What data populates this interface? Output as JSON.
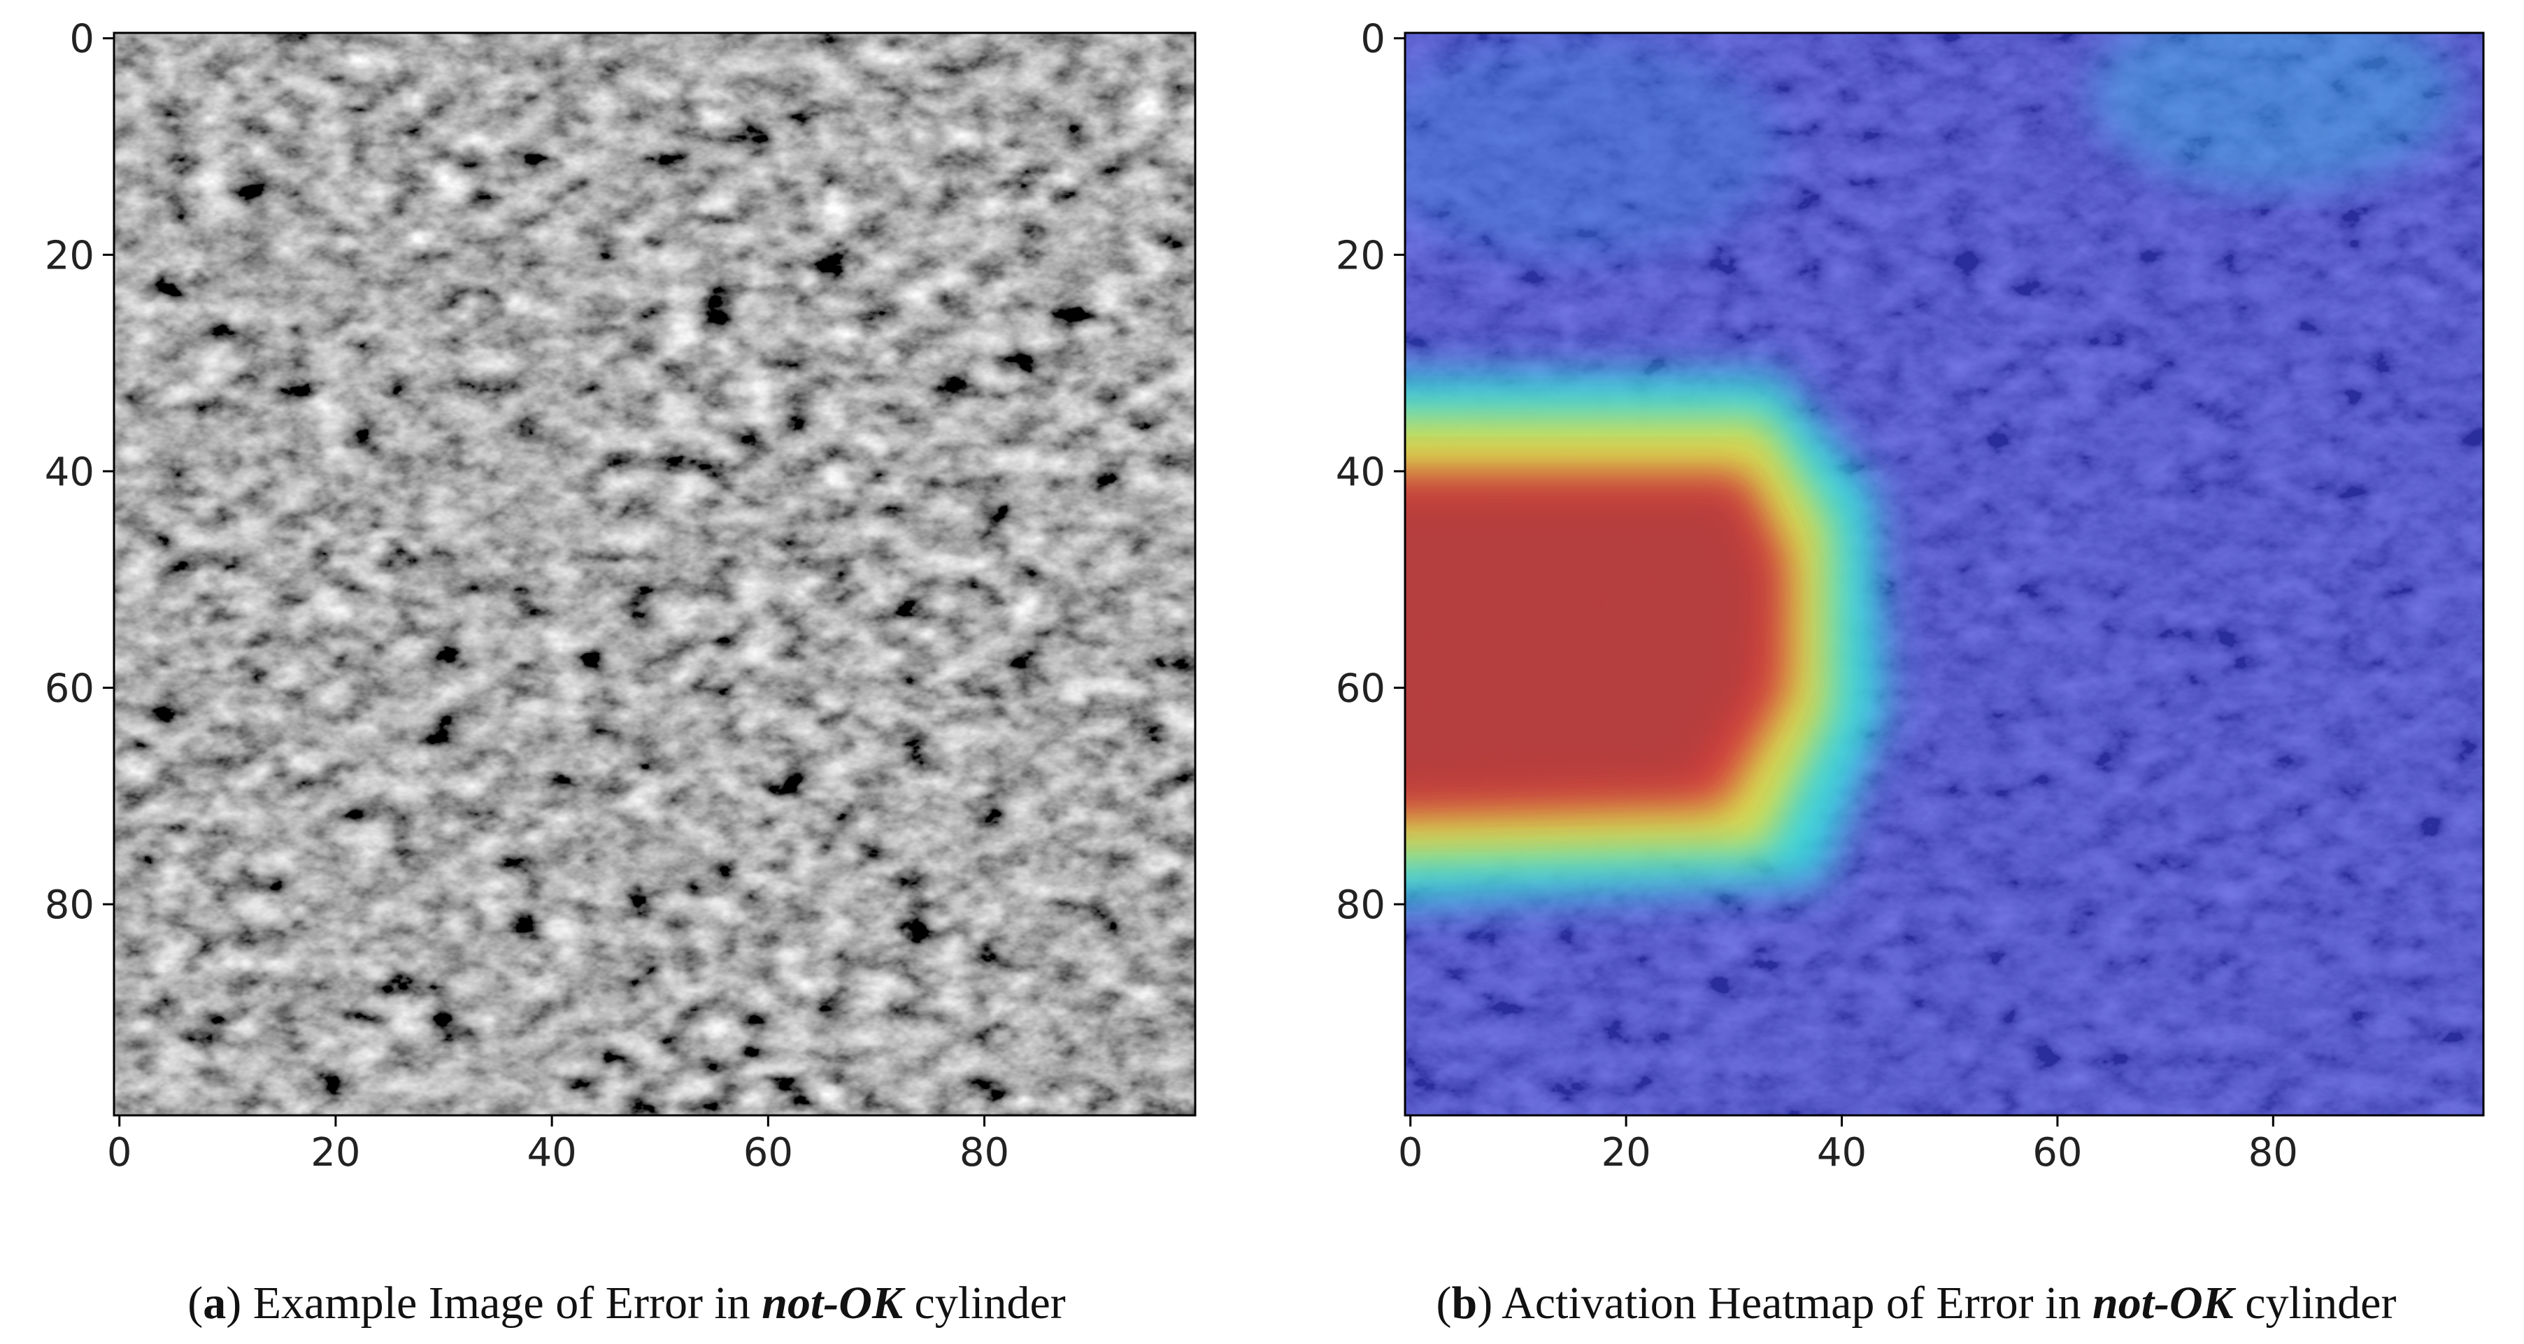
{
  "chart_data": [
    {
      "type": "image",
      "xlim": [
        -0.5,
        99.5
      ],
      "ylim": [
        99.5,
        -0.5
      ],
      "xticks": [
        0,
        20,
        40,
        60,
        80
      ],
      "yticks": [
        0,
        20,
        40,
        60,
        80
      ],
      "caption": [
        "(",
        "a",
        ") Example Image of Error in ",
        "not-OK",
        " cylinder"
      ]
    },
    {
      "type": "heatmap-overlay",
      "xlim": [
        -0.5,
        99.5
      ],
      "ylim": [
        99.5,
        -0.5
      ],
      "xticks": [
        0,
        20,
        40,
        60,
        80
      ],
      "yticks": [
        0,
        20,
        40,
        60,
        80
      ],
      "caption": [
        "(",
        "b",
        ") Activation Heatmap of Error in ",
        "not-OK",
        " cylinder"
      ]
    }
  ]
}
